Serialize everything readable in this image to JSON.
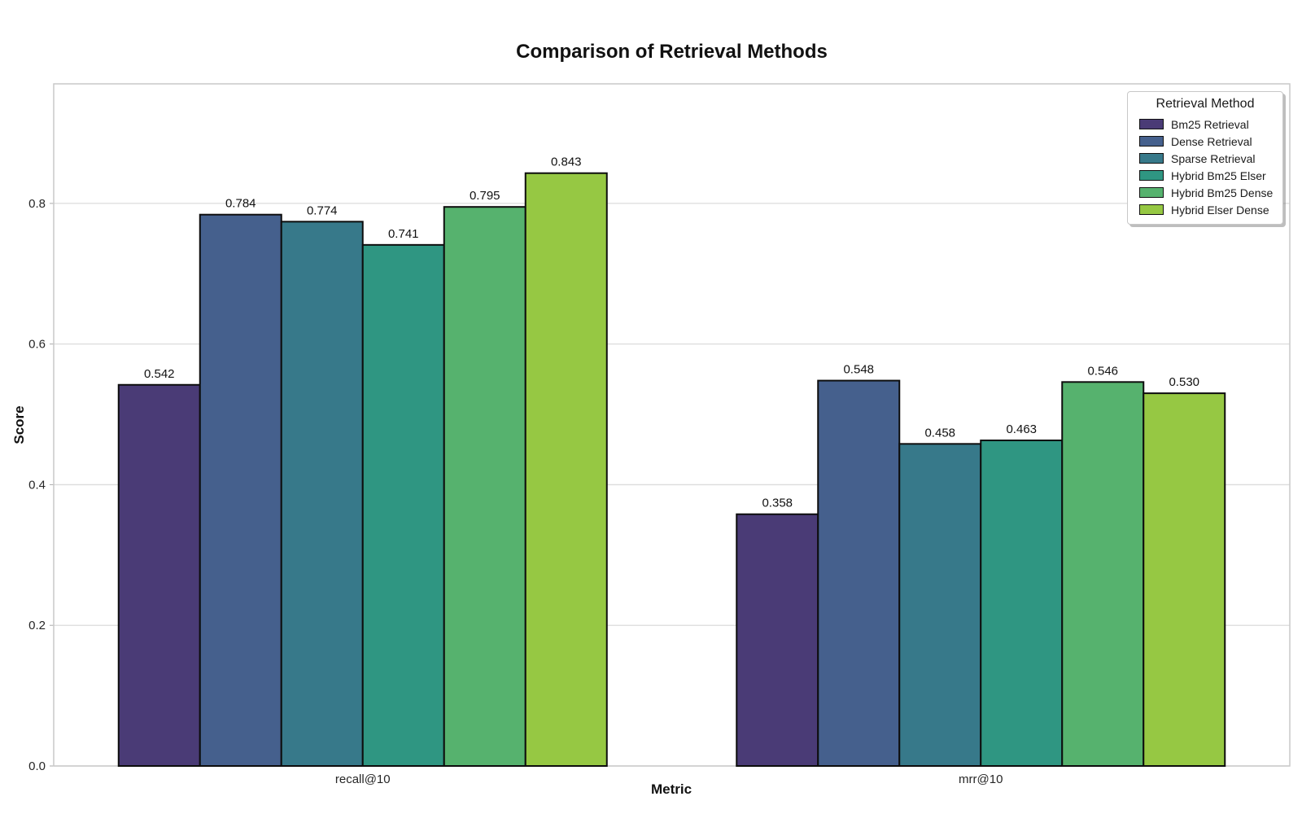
{
  "chart_data": {
    "type": "bar",
    "title": "Comparison of Retrieval Methods",
    "xlabel": "Metric",
    "ylabel": "Score",
    "categories": [
      "recall@10",
      "mrr@10"
    ],
    "series": [
      {
        "name": "Bm25 Retrieval",
        "color": "#4a3b76",
        "values": [
          0.542,
          0.358
        ]
      },
      {
        "name": "Dense Retrieval",
        "color": "#45608d",
        "values": [
          0.784,
          0.548
        ]
      },
      {
        "name": "Sparse Retrieval",
        "color": "#37798a",
        "values": [
          0.774,
          0.458
        ]
      },
      {
        "name": "Hybrid Bm25 Elser",
        "color": "#2f9682",
        "values": [
          0.741,
          0.463
        ]
      },
      {
        "name": "Hybrid Bm25 Dense",
        "color": "#56b26e",
        "values": [
          0.795,
          0.546
        ]
      },
      {
        "name": "Hybrid Elser Dense",
        "color": "#96c843",
        "values": [
          0.843,
          0.53
        ]
      }
    ],
    "yticks": [
      0.0,
      0.2,
      0.4,
      0.6,
      0.8
    ],
    "ylim": [
      0,
      0.97
    ],
    "value_label_decimals": 3,
    "ytick_decimals": 1,
    "legend_title": "Retrieval Method",
    "legend_position": "upper right",
    "grid": "horizontal",
    "bar_edge_color": "#0d0d0d",
    "grid_color": "#dcdcdc",
    "frame_color": "#c9c9c9",
    "tick_label_color": "#262626",
    "value_label_color": "#111111",
    "background_color": "#ffffff"
  }
}
